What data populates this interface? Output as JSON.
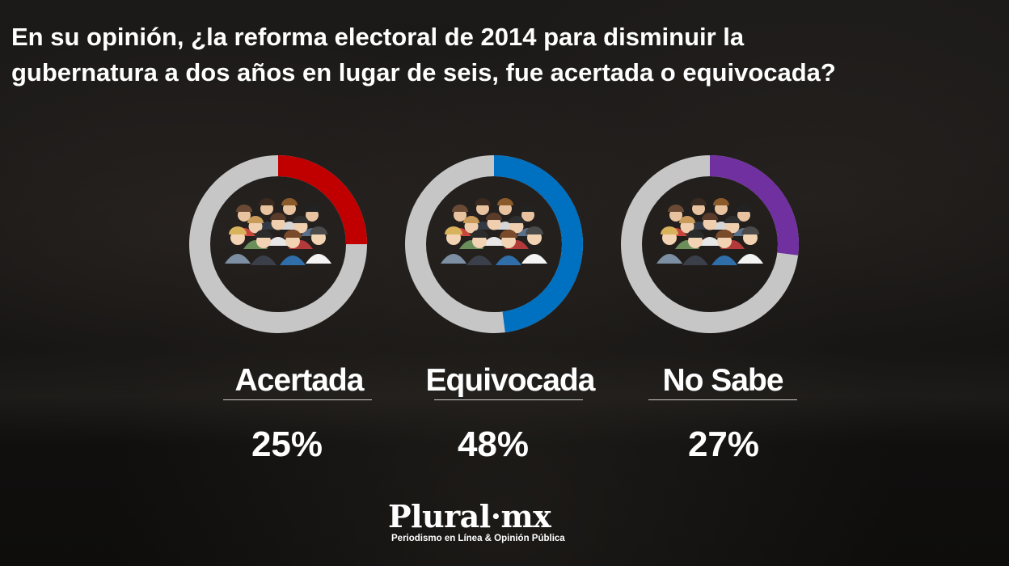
{
  "title_lines": [
    "En su opinión, ¿la reforma electoral de 2014 para disminuir la",
    "gubernatura a dos años en lugar de seis, fue acertada o equivocada?"
  ],
  "logo": {
    "name": "Plural·mx",
    "tagline": "Periodismo en Línea & Opinión Pública"
  },
  "chart_data": {
    "type": "pie",
    "title": "En su opinión, ¿la reforma electoral de 2014 para disminuir la gubernatura a dos años en lugar de seis, fue acertada o equivocada?",
    "categories": [
      "Acertada",
      "Equivocada",
      "No Sabe"
    ],
    "values": [
      25,
      48,
      27
    ],
    "labels": [
      "25%",
      "48%",
      "27%"
    ],
    "colors": [
      "#c00000",
      "#0070c0",
      "#7030a0"
    ],
    "remainder_color": "#c6c6c6",
    "style": "donut-per-category",
    "unit": "%"
  }
}
